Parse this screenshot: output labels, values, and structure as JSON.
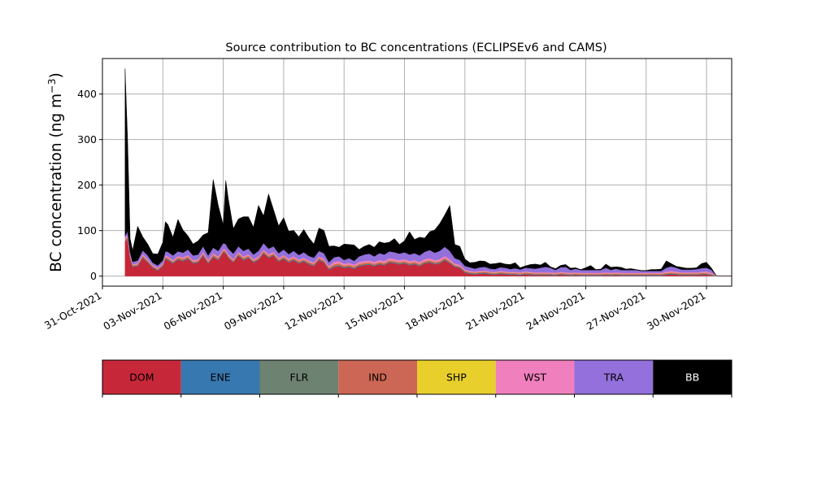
{
  "chart_data": {
    "type": "area",
    "stacked": true,
    "title": "Source contribution to BC concentrations (ECLIPSEv6 and CAMS)",
    "ylabel_main": "BC concentration (ng m",
    "ylabel_sup": "−3",
    "ylabel_close": ")",
    "xlabel": "",
    "ylim": [
      -22,
      478
    ],
    "yticks": [
      0,
      100,
      200,
      300,
      400
    ],
    "x_start_day": 1,
    "x_end_day": 32.25,
    "grid": true,
    "xticks": [
      {
        "day": 1,
        "label": "31-Oct-2021"
      },
      {
        "day": 4,
        "label": "03-Nov-2021"
      },
      {
        "day": 7,
        "label": "06-Nov-2021"
      },
      {
        "day": 10,
        "label": "09-Nov-2021"
      },
      {
        "day": 13,
        "label": "12-Nov-2021"
      },
      {
        "day": 16,
        "label": "15-Nov-2021"
      },
      {
        "day": 19,
        "label": "18-Nov-2021"
      },
      {
        "day": 22,
        "label": "21-Nov-2021"
      },
      {
        "day": 25,
        "label": "24-Nov-2021"
      },
      {
        "day": 28,
        "label": "27-Nov-2021"
      },
      {
        "day": 31,
        "label": "30-Nov-2021"
      }
    ],
    "time_day": [
      2.125,
      2.25,
      2.375,
      2.5,
      2.75,
      3.0,
      3.25,
      3.5,
      3.75,
      4.0,
      4.125,
      4.25,
      4.5,
      4.75,
      5.0,
      5.25,
      5.5,
      5.75,
      6.0,
      6.25,
      6.5,
      6.75,
      7.0,
      7.125,
      7.25,
      7.5,
      7.75,
      8.0,
      8.25,
      8.5,
      8.75,
      9.0,
      9.25,
      9.5,
      9.75,
      10.0,
      10.25,
      10.5,
      10.75,
      11.0,
      11.25,
      11.5,
      11.75,
      12.0,
      12.25,
      12.5,
      12.75,
      13.0,
      13.25,
      13.5,
      13.75,
      14.0,
      14.25,
      14.5,
      14.75,
      15.0,
      15.25,
      15.5,
      15.75,
      16.0,
      16.25,
      16.5,
      16.75,
      17.0,
      17.25,
      17.5,
      17.75,
      18.0,
      18.25,
      18.5,
      18.75,
      19.0,
      19.25,
      19.5,
      19.75,
      20.0,
      20.25,
      20.5,
      20.75,
      21.0,
      21.25,
      21.5,
      21.75,
      22.0,
      22.25,
      22.5,
      22.75,
      23.0,
      23.25,
      23.5,
      23.75,
      24.0,
      24.25,
      24.5,
      24.75,
      25.0,
      25.25,
      25.5,
      25.75,
      26.0,
      26.25,
      26.5,
      26.75,
      27.0,
      27.25,
      27.5,
      27.75,
      28.0,
      28.25,
      28.5,
      28.75,
      29.0,
      29.25,
      29.5,
      29.75,
      30.0,
      30.25,
      30.5,
      30.75,
      31.0,
      31.25,
      31.5,
      31.75,
      32.0,
      32.25
    ],
    "series": [
      {
        "name": "DOM",
        "color": "#c62839",
        "values": [
          75,
          82,
          40,
          20,
          22,
          40,
          30,
          18,
          12,
          22,
          38,
          35,
          28,
          36,
          33,
          38,
          28,
          30,
          45,
          28,
          42,
          35,
          52,
          50,
          40,
          30,
          45,
          35,
          40,
          30,
          35,
          50,
          40,
          45,
          32,
          38,
          30,
          35,
          28,
          32,
          26,
          22,
          35,
          30,
          14,
          20,
          22,
          18,
          20,
          16,
          22,
          24,
          25,
          22,
          26,
          24,
          30,
          28,
          26,
          28,
          24,
          26,
          22,
          28,
          30,
          26,
          28,
          35,
          28,
          20,
          18,
          8,
          5,
          4,
          5,
          6,
          4,
          3,
          5,
          4,
          3,
          3,
          2,
          4,
          3,
          2,
          2,
          2,
          2,
          1,
          3,
          2,
          1,
          2,
          1,
          1,
          1,
          1,
          1,
          2,
          1,
          2,
          1,
          1,
          1,
          1,
          1,
          1,
          1,
          1,
          1,
          3,
          4,
          3,
          2,
          2,
          2,
          2,
          3,
          3,
          1
        ]
      },
      {
        "name": "ENE",
        "color": "#3878b0",
        "values": [
          1,
          1,
          1,
          1,
          1,
          1,
          1,
          1,
          1,
          1,
          1,
          1,
          1,
          1,
          1,
          1,
          1,
          1,
          1,
          1,
          1,
          1,
          1,
          1,
          1,
          1,
          1,
          1,
          1,
          1,
          1,
          1,
          1,
          1,
          1,
          1,
          1,
          1,
          1,
          1,
          1,
          1,
          1,
          1,
          1,
          1,
          1,
          1,
          1,
          1,
          1,
          1,
          1,
          1,
          1,
          1,
          1,
          1,
          1,
          1,
          1,
          1,
          1,
          1,
          1,
          1,
          1,
          1,
          1,
          1,
          1,
          1,
          1,
          1,
          1,
          1,
          1,
          1,
          1,
          1,
          1,
          1,
          1,
          1,
          1,
          1,
          1,
          1,
          1,
          1,
          1,
          1,
          1,
          1,
          1,
          1,
          1,
          1,
          1,
          1,
          1,
          1,
          1,
          1,
          1,
          1,
          1,
          1,
          1,
          1,
          1,
          1,
          1,
          1,
          1,
          1,
          1,
          1,
          1,
          1,
          1
        ]
      },
      {
        "name": "FLR",
        "color": "#6e8272",
        "values": [
          1,
          1,
          1,
          1,
          1,
          1,
          1,
          1,
          1,
          1,
          1,
          1,
          1,
          1,
          1,
          1,
          1,
          1,
          1,
          1,
          1,
          1,
          1,
          1,
          1,
          1,
          1,
          1,
          1,
          1,
          1,
          1,
          1,
          1,
          1,
          1,
          1,
          1,
          1,
          1,
          1,
          1,
          1,
          1,
          1,
          1,
          1,
          1,
          1,
          1,
          1,
          1,
          1,
          1,
          1,
          1,
          1,
          1,
          1,
          1,
          1,
          1,
          1,
          1,
          1,
          1,
          1,
          1,
          1,
          1,
          1,
          1,
          1,
          1,
          1,
          1,
          1,
          1,
          1,
          1,
          1,
          1,
          1,
          1,
          1,
          1,
          1,
          1,
          1,
          1,
          1,
          1,
          1,
          1,
          1,
          1,
          1,
          1,
          1,
          1,
          1,
          1,
          1,
          1,
          1,
          1,
          1,
          1,
          1,
          1,
          1,
          1,
          1,
          1,
          1,
          1,
          1,
          1,
          1,
          1,
          1
        ]
      },
      {
        "name": "IND",
        "color": "#cc6655",
        "values": [
          3,
          3,
          2,
          2,
          2,
          3,
          2,
          2,
          2,
          2,
          3,
          3,
          2,
          3,
          3,
          3,
          2,
          2,
          3,
          2,
          3,
          3,
          3,
          3,
          3,
          2,
          3,
          3,
          3,
          2,
          3,
          3,
          3,
          3,
          3,
          3,
          3,
          3,
          3,
          3,
          3,
          3,
          3,
          3,
          3,
          4,
          4,
          3,
          3,
          3,
          3,
          3,
          3,
          3,
          3,
          3,
          3,
          3,
          3,
          3,
          3,
          3,
          3,
          3,
          3,
          3,
          3,
          3,
          3,
          2,
          2,
          2,
          2,
          2,
          2,
          2,
          2,
          2,
          2,
          2,
          2,
          2,
          2,
          2,
          2,
          2,
          2,
          2,
          2,
          2,
          2,
          2,
          2,
          2,
          2,
          2,
          2,
          2,
          2,
          2,
          2,
          2,
          2,
          2,
          2,
          2,
          2,
          2,
          2,
          2,
          2,
          2,
          2,
          2,
          2,
          2,
          2,
          2,
          2,
          2,
          2
        ]
      },
      {
        "name": "SHP",
        "color": "#e8cf2c",
        "values": [
          0.5,
          0.5,
          0.5,
          0.5,
          0.5,
          0.5,
          0.5,
          0.5,
          0.5,
          0.5,
          0.5,
          0.5,
          0.5,
          0.5,
          0.5,
          0.5,
          0.5,
          0.5,
          0.5,
          0.5,
          0.5,
          0.5,
          0.5,
          0.5,
          0.5,
          0.5,
          0.5,
          0.5,
          0.5,
          0.5,
          0.5,
          0.5,
          0.5,
          0.5,
          0.5,
          0.5,
          0.5,
          0.5,
          0.5,
          0.5,
          0.5,
          0.5,
          0.5,
          0.5,
          0.5,
          0.5,
          0.5,
          0.5,
          0.5,
          0.5,
          0.5,
          0.5,
          0.5,
          0.5,
          0.5,
          0.5,
          0.5,
          0.5,
          0.5,
          0.5,
          0.5,
          0.5,
          0.5,
          0.5,
          0.5,
          0.5,
          0.5,
          0.5,
          0.5,
          0.5,
          0.5,
          0.5,
          0.5,
          0.5,
          0.5,
          0.5,
          0.5,
          0.5,
          0.5,
          0.5,
          0.5,
          0.5,
          0.5,
          0.5,
          0.5,
          0.5,
          0.5,
          0.5,
          0.5,
          0.5,
          0.5,
          0.5,
          0.5,
          0.5,
          0.5,
          0.5,
          0.5,
          0.5,
          0.5,
          0.5,
          0.5,
          0.5,
          0.5,
          0.5,
          0.5,
          0.5,
          0.5,
          0.5,
          0.5,
          0.5,
          0.5,
          0.5,
          0.5,
          0.5,
          0.5,
          0.5,
          0.5,
          0.5,
          0.5,
          0.5,
          0.5
        ]
      },
      {
        "name": "WST",
        "color": "#f07fbd",
        "values": [
          3,
          3,
          2,
          2,
          2,
          3,
          3,
          2,
          2,
          2,
          3,
          3,
          3,
          3,
          3,
          3,
          3,
          3,
          3,
          3,
          3,
          3,
          3,
          3,
          3,
          3,
          3,
          3,
          3,
          3,
          3,
          3,
          3,
          3,
          3,
          3,
          3,
          3,
          3,
          3,
          3,
          3,
          3,
          3,
          3,
          5,
          5,
          4,
          4,
          4,
          4,
          4,
          4,
          4,
          4,
          4,
          4,
          4,
          4,
          4,
          4,
          4,
          4,
          4,
          4,
          4,
          4,
          4,
          4,
          3,
          3,
          2,
          2,
          2,
          2,
          2,
          2,
          2,
          2,
          2,
          2,
          2,
          2,
          2,
          2,
          2,
          2,
          2,
          2,
          2,
          2,
          2,
          2,
          2,
          2,
          2,
          2,
          2,
          2,
          2,
          2,
          2,
          2,
          2,
          2,
          2,
          2,
          2,
          2,
          2,
          2,
          3,
          3,
          3,
          2,
          2,
          2,
          2,
          2,
          3,
          2
        ]
      },
      {
        "name": "TRA",
        "color": "#9370db",
        "values": [
          5,
          8,
          6,
          5,
          6,
          8,
          8,
          5,
          5,
          6,
          8,
          10,
          10,
          10,
          10,
          12,
          10,
          10,
          12,
          10,
          12,
          12,
          12,
          12,
          12,
          12,
          12,
          12,
          12,
          10,
          12,
          14,
          12,
          12,
          10,
          12,
          10,
          12,
          10,
          12,
          10,
          10,
          12,
          12,
          8,
          10,
          10,
          8,
          10,
          8,
          12,
          14,
          15,
          12,
          15,
          14,
          15,
          15,
          14,
          15,
          14,
          15,
          14,
          16,
          18,
          16,
          18,
          20,
          18,
          12,
          10,
          8,
          8,
          6,
          8,
          8,
          6,
          6,
          8,
          8,
          6,
          8,
          6,
          8,
          8,
          8,
          10,
          12,
          10,
          6,
          10,
          12,
          6,
          8,
          6,
          6,
          6,
          6,
          6,
          10,
          6,
          8,
          6,
          6,
          6,
          6,
          4,
          4,
          4,
          4,
          4,
          8,
          10,
          8,
          6,
          6,
          6,
          7,
          8,
          8,
          6
        ]
      },
      {
        "name": "BB",
        "color": "#000000",
        "values": [
          367,
          200,
          30,
          25,
          75,
          30,
          25,
          20,
          25,
          40,
          65,
          60,
          40,
          70,
          50,
          30,
          25,
          30,
          25,
          50,
          150,
          100,
          40,
          140,
          110,
          55,
          60,
          75,
          70,
          60,
          100,
          60,
          120,
          80,
          60,
          70,
          50,
          45,
          40,
          50,
          40,
          30,
          50,
          50,
          35,
          25,
          20,
          35,
          30,
          35,
          15,
          18,
          20,
          20,
          25,
          25,
          20,
          30,
          20,
          25,
          50,
          30,
          40,
          30,
          40,
          50,
          60,
          70,
          100,
          30,
          30,
          15,
          10,
          14,
          14,
          12,
          10,
          12,
          10,
          8,
          10,
          12,
          4,
          4,
          8,
          10,
          6,
          10,
          2,
          3,
          4,
          5,
          4,
          2,
          1,
          5,
          10,
          1,
          2,
          8,
          6,
          4,
          6,
          2,
          3,
          1,
          1,
          1,
          3,
          3,
          4,
          15,
          6,
          3,
          5,
          3,
          3,
          3,
          10,
          12,
          4
        ]
      }
    ],
    "legend": {
      "position": "bottom colorbar",
      "labels": [
        "DOM",
        "ENE",
        "FLR",
        "IND",
        "SHP",
        "WST",
        "TRA",
        "BB"
      ],
      "colors": [
        "#c62839",
        "#3878b0",
        "#6e8272",
        "#cc6655",
        "#e8cf2c",
        "#f07fbd",
        "#9370db",
        "#000000"
      ],
      "text_colors": [
        "#000000",
        "#000000",
        "#000000",
        "#000000",
        "#000000",
        "#000000",
        "#000000",
        "#ffffff"
      ]
    }
  }
}
